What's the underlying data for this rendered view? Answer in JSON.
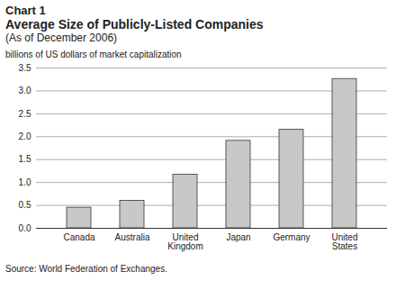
{
  "chart_data": {
    "type": "bar",
    "chart_number": "Chart 1",
    "title": "Average Size of Publicly-Listed Companies",
    "subtitle": "(As of December 2006)",
    "y_label": "billions of US dollars of market capitalization",
    "source": "Source: World Federation of Exchanges.",
    "categories": [
      "Canada",
      "Australia",
      "United Kingdom",
      "Japan",
      "Germany",
      "United States"
    ],
    "values": [
      0.45,
      0.6,
      1.17,
      1.91,
      2.15,
      3.26
    ],
    "color": "#c8c8c8",
    "ylim": [
      0,
      3.5
    ],
    "yticks": [
      {
        "value": 0,
        "label": "0.0"
      },
      0.5,
      {
        "value": 1,
        "label": "1.0"
      },
      1.5,
      {
        "value": 2,
        "label": "2.0"
      },
      2.5,
      {
        "value": 3,
        "label": "3.0"
      },
      3.5
    ],
    "grid": true
  }
}
